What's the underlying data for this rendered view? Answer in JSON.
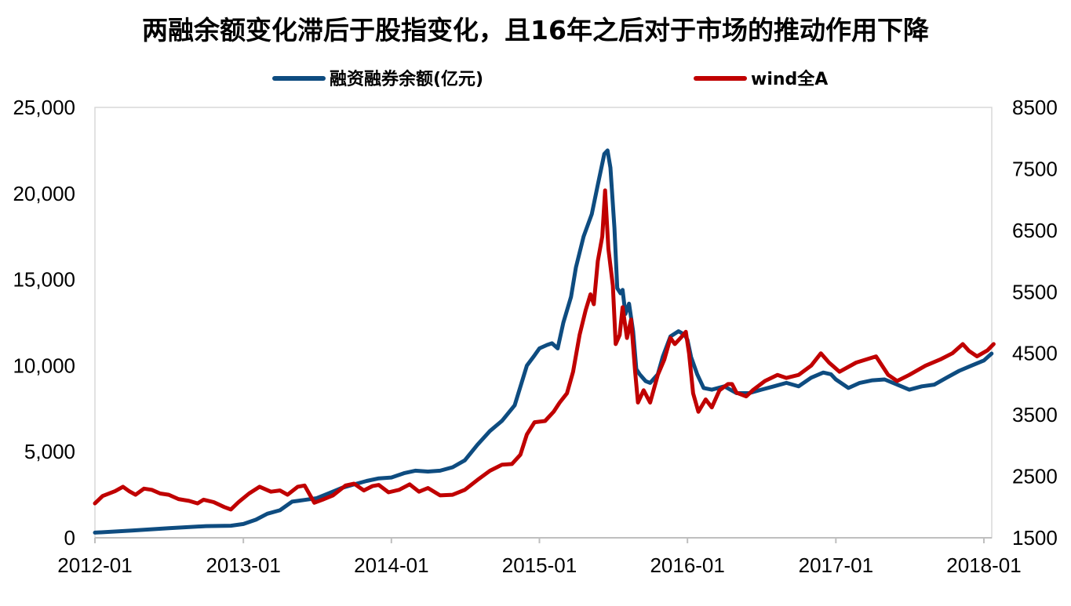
{
  "chart_data": {
    "type": "line",
    "title": "两融余额变化滞后于股指变化，且16年之后对于市场的推动作用下降",
    "x_ticks": [
      "2012-01",
      "2013-01",
      "2014-01",
      "2015-01",
      "2016-01",
      "2017-01",
      "2018-01"
    ],
    "y_left": {
      "range": [
        0,
        25000
      ],
      "ticks": [
        "0",
        "5,000",
        "10,000",
        "15,000",
        "20,000",
        "25,000"
      ]
    },
    "y_right": {
      "range": [
        1500,
        8500
      ],
      "ticks": [
        "1500",
        "2500",
        "3500",
        "4500",
        "5500",
        "6500",
        "7500",
        "8500"
      ]
    },
    "grid": false,
    "legend_position": "top",
    "series": [
      {
        "name": "融资融券余额(亿元)",
        "axis": "left",
        "color": "#0E4C80",
        "points": [
          [
            "2012-01-01",
            300
          ],
          [
            "2012-04-01",
            420
          ],
          [
            "2012-07-01",
            560
          ],
          [
            "2012-10-01",
            680
          ],
          [
            "2012-12-01",
            700
          ],
          [
            "2013-01-01",
            800
          ],
          [
            "2013-02-01",
            1050
          ],
          [
            "2013-03-01",
            1400
          ],
          [
            "2013-04-01",
            1600
          ],
          [
            "2013-05-01",
            2100
          ],
          [
            "2013-06-01",
            2200
          ],
          [
            "2013-07-01",
            2300
          ],
          [
            "2013-08-01",
            2600
          ],
          [
            "2013-09-01",
            2900
          ],
          [
            "2013-10-01",
            3100
          ],
          [
            "2013-11-01",
            3300
          ],
          [
            "2013-12-01",
            3450
          ],
          [
            "2014-01-01",
            3500
          ],
          [
            "2014-02-01",
            3750
          ],
          [
            "2014-03-01",
            3900
          ],
          [
            "2014-04-01",
            3850
          ],
          [
            "2014-05-01",
            3900
          ],
          [
            "2014-06-01",
            4100
          ],
          [
            "2014-07-01",
            4500
          ],
          [
            "2014-08-01",
            5400
          ],
          [
            "2014-09-01",
            6200
          ],
          [
            "2014-10-01",
            6800
          ],
          [
            "2014-11-01",
            7700
          ],
          [
            "2014-12-01",
            10000
          ],
          [
            "2014-12-20",
            10600
          ],
          [
            "2015-01-01",
            11000
          ],
          [
            "2015-01-20",
            11200
          ],
          [
            "2015-02-01",
            11300
          ],
          [
            "2015-02-15",
            11000
          ],
          [
            "2015-03-01",
            12500
          ],
          [
            "2015-03-20",
            14000
          ],
          [
            "2015-04-01",
            15700
          ],
          [
            "2015-04-20",
            17500
          ],
          [
            "2015-05-10",
            18800
          ],
          [
            "2015-05-25",
            20500
          ],
          [
            "2015-06-10",
            22300
          ],
          [
            "2015-06-18",
            22500
          ],
          [
            "2015-06-25",
            21500
          ],
          [
            "2015-07-05",
            18000
          ],
          [
            "2015-07-12",
            14500
          ],
          [
            "2015-07-20",
            14200
          ],
          [
            "2015-07-25",
            14400
          ],
          [
            "2015-08-01",
            13000
          ],
          [
            "2015-08-10",
            13600
          ],
          [
            "2015-08-20",
            12000
          ],
          [
            "2015-08-28",
            9800
          ],
          [
            "2015-09-05",
            9500
          ],
          [
            "2015-09-20",
            9100
          ],
          [
            "2015-10-01",
            9000
          ],
          [
            "2015-10-20",
            9500
          ],
          [
            "2015-11-01",
            10500
          ],
          [
            "2015-11-20",
            11700
          ],
          [
            "2015-12-10",
            12000
          ],
          [
            "2015-12-25",
            11800
          ],
          [
            "2016-01-01",
            11500
          ],
          [
            "2016-01-10",
            10500
          ],
          [
            "2016-01-25",
            9500
          ],
          [
            "2016-02-10",
            8700
          ],
          [
            "2016-03-01",
            8600
          ],
          [
            "2016-04-01",
            8800
          ],
          [
            "2016-05-01",
            8400
          ],
          [
            "2016-06-01",
            8400
          ],
          [
            "2016-07-01",
            8600
          ],
          [
            "2016-08-01",
            8800
          ],
          [
            "2016-09-01",
            9000
          ],
          [
            "2016-10-01",
            8800
          ],
          [
            "2016-11-01",
            9300
          ],
          [
            "2016-12-01",
            9600
          ],
          [
            "2016-12-20",
            9500
          ],
          [
            "2017-01-01",
            9200
          ],
          [
            "2017-02-01",
            8700
          ],
          [
            "2017-03-01",
            9000
          ],
          [
            "2017-04-01",
            9150
          ],
          [
            "2017-05-01",
            9200
          ],
          [
            "2017-06-01",
            8900
          ],
          [
            "2017-07-01",
            8600
          ],
          [
            "2017-08-01",
            8800
          ],
          [
            "2017-09-01",
            8900
          ],
          [
            "2017-10-01",
            9300
          ],
          [
            "2017-11-01",
            9700
          ],
          [
            "2017-12-01",
            10000
          ],
          [
            "2018-01-01",
            10300
          ],
          [
            "2018-01-20",
            10700
          ]
        ]
      },
      {
        "name": "wind全A",
        "axis": "right",
        "color": "#C00000",
        "points": [
          [
            "2012-01-01",
            2060
          ],
          [
            "2012-01-20",
            2180
          ],
          [
            "2012-02-20",
            2260
          ],
          [
            "2012-03-10",
            2330
          ],
          [
            "2012-03-25",
            2260
          ],
          [
            "2012-04-10",
            2200
          ],
          [
            "2012-05-01",
            2300
          ],
          [
            "2012-05-20",
            2280
          ],
          [
            "2012-06-10",
            2220
          ],
          [
            "2012-07-01",
            2200
          ],
          [
            "2012-07-25",
            2130
          ],
          [
            "2012-08-20",
            2100
          ],
          [
            "2012-09-10",
            2060
          ],
          [
            "2012-09-25",
            2120
          ],
          [
            "2012-10-20",
            2080
          ],
          [
            "2012-11-15",
            2000
          ],
          [
            "2012-12-01",
            1960
          ],
          [
            "2012-12-20",
            2080
          ],
          [
            "2013-01-15",
            2220
          ],
          [
            "2013-02-10",
            2330
          ],
          [
            "2013-03-10",
            2250
          ],
          [
            "2013-04-01",
            2270
          ],
          [
            "2013-04-20",
            2200
          ],
          [
            "2013-05-15",
            2330
          ],
          [
            "2013-06-01",
            2350
          ],
          [
            "2013-06-25",
            2070
          ],
          [
            "2013-07-15",
            2120
          ],
          [
            "2013-08-10",
            2190
          ],
          [
            "2013-09-10",
            2350
          ],
          [
            "2013-10-01",
            2380
          ],
          [
            "2013-10-25",
            2270
          ],
          [
            "2013-11-15",
            2340
          ],
          [
            "2013-12-01",
            2360
          ],
          [
            "2013-12-25",
            2240
          ],
          [
            "2014-01-20",
            2280
          ],
          [
            "2014-02-15",
            2370
          ],
          [
            "2014-03-10",
            2250
          ],
          [
            "2014-04-01",
            2310
          ],
          [
            "2014-05-01",
            2190
          ],
          [
            "2014-06-01",
            2200
          ],
          [
            "2014-07-01",
            2280
          ],
          [
            "2014-08-01",
            2440
          ],
          [
            "2014-09-01",
            2590
          ],
          [
            "2014-10-01",
            2690
          ],
          [
            "2014-10-25",
            2700
          ],
          [
            "2014-11-15",
            2850
          ],
          [
            "2014-12-01",
            3180
          ],
          [
            "2014-12-20",
            3380
          ],
          [
            "2015-01-15",
            3400
          ],
          [
            "2015-02-05",
            3550
          ],
          [
            "2015-02-20",
            3700
          ],
          [
            "2015-03-10",
            3850
          ],
          [
            "2015-03-25",
            4200
          ],
          [
            "2015-04-10",
            4800
          ],
          [
            "2015-04-25",
            5200
          ],
          [
            "2015-05-07",
            5460
          ],
          [
            "2015-05-15",
            5300
          ],
          [
            "2015-05-25",
            6000
          ],
          [
            "2015-06-05",
            6400
          ],
          [
            "2015-06-12",
            7150
          ],
          [
            "2015-06-20",
            6200
          ],
          [
            "2015-07-01",
            5600
          ],
          [
            "2015-07-08",
            4650
          ],
          [
            "2015-07-18",
            4800
          ],
          [
            "2015-07-25",
            5250
          ],
          [
            "2015-08-05",
            4750
          ],
          [
            "2015-08-15",
            5050
          ],
          [
            "2015-08-25",
            4200
          ],
          [
            "2015-09-01",
            3700
          ],
          [
            "2015-09-15",
            3900
          ],
          [
            "2015-10-01",
            3700
          ],
          [
            "2015-10-20",
            4150
          ],
          [
            "2015-11-05",
            4400
          ],
          [
            "2015-11-20",
            4750
          ],
          [
            "2015-12-01",
            4650
          ],
          [
            "2015-12-15",
            4750
          ],
          [
            "2015-12-28",
            4850
          ],
          [
            "2016-01-05",
            4500
          ],
          [
            "2016-01-15",
            3850
          ],
          [
            "2016-01-28",
            3550
          ],
          [
            "2016-02-15",
            3750
          ],
          [
            "2016-03-01",
            3620
          ],
          [
            "2016-03-20",
            3900
          ],
          [
            "2016-04-10",
            4000
          ],
          [
            "2016-04-20",
            4000
          ],
          [
            "2016-05-01",
            3860
          ],
          [
            "2016-05-25",
            3800
          ],
          [
            "2016-06-10",
            3900
          ],
          [
            "2016-07-10",
            4050
          ],
          [
            "2016-08-10",
            4150
          ],
          [
            "2016-09-01",
            4100
          ],
          [
            "2016-10-01",
            4150
          ],
          [
            "2016-11-01",
            4300
          ],
          [
            "2016-11-25",
            4500
          ],
          [
            "2016-12-15",
            4350
          ],
          [
            "2017-01-10",
            4200
          ],
          [
            "2017-02-20",
            4350
          ],
          [
            "2017-04-10",
            4450
          ],
          [
            "2017-05-10",
            4150
          ],
          [
            "2017-06-01",
            4050
          ],
          [
            "2017-07-01",
            4150
          ],
          [
            "2017-08-10",
            4300
          ],
          [
            "2017-09-15",
            4400
          ],
          [
            "2017-10-15",
            4500
          ],
          [
            "2017-11-10",
            4650
          ],
          [
            "2017-11-25",
            4540
          ],
          [
            "2017-12-15",
            4450
          ],
          [
            "2018-01-10",
            4550
          ],
          [
            "2018-01-25",
            4650
          ]
        ]
      }
    ]
  }
}
